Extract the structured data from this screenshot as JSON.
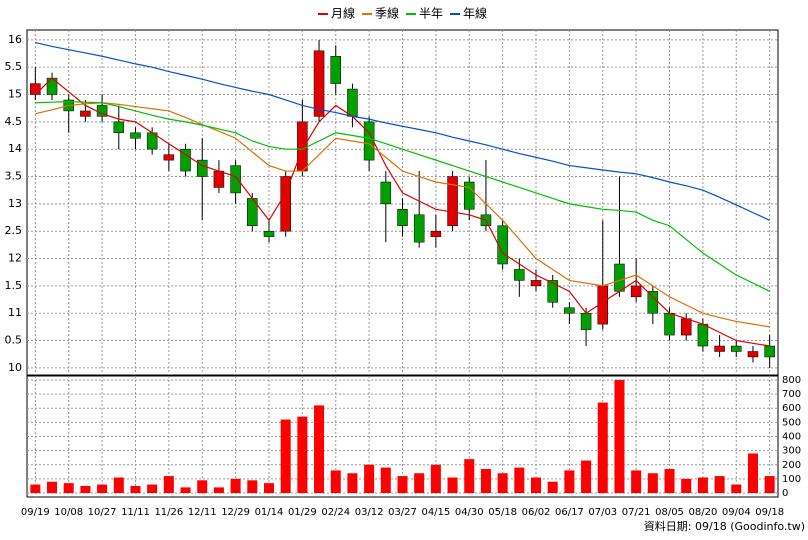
{
  "chart_data": {
    "type": "candlestick",
    "categories": [
      "09/19",
      null,
      "10/08",
      null,
      "10/27",
      null,
      "11/11",
      null,
      "11/26",
      null,
      "12/11",
      null,
      "12/29",
      null,
      "01/14",
      null,
      "01/29",
      null,
      "02/24",
      null,
      "03/12",
      null,
      "03/27",
      null,
      "04/15",
      null,
      "04/30",
      null,
      "05/18",
      null,
      "06/02",
      null,
      "06/17",
      null,
      "07/03",
      null,
      "07/21",
      null,
      "08/05",
      null,
      "08/20",
      null,
      "09/04",
      null,
      "09/18"
    ],
    "open": [
      15.0,
      15.3,
      14.9,
      14.6,
      14.8,
      14.5,
      14.3,
      14.3,
      13.8,
      14.0,
      13.8,
      13.3,
      13.7,
      13.1,
      12.5,
      12.5,
      13.6,
      14.6,
      15.7,
      15.1,
      14.5,
      13.4,
      12.9,
      12.8,
      12.4,
      12.6,
      13.4,
      12.8,
      12.6,
      11.8,
      11.5,
      11.6,
      11.1,
      11.0,
      10.8,
      11.9,
      11.3,
      11.4,
      11.0,
      10.6,
      10.8,
      10.3,
      10.4,
      10.2,
      10.4
    ],
    "high": [
      15.5,
      15.4,
      15.0,
      14.9,
      15.0,
      14.8,
      14.4,
      14.4,
      14.1,
      14.1,
      14.2,
      13.8,
      13.8,
      13.2,
      12.7,
      13.6,
      14.9,
      16.0,
      15.9,
      15.2,
      14.6,
      13.6,
      13.1,
      13.6,
      12.8,
      13.6,
      13.5,
      13.8,
      12.7,
      12.0,
      11.8,
      11.7,
      11.2,
      11.1,
      12.7,
      13.5,
      12.0,
      11.5,
      11.1,
      11.0,
      10.9,
      10.6,
      10.5,
      10.4,
      10.6
    ],
    "low": [
      14.9,
      14.9,
      14.3,
      14.5,
      14.5,
      14.0,
      14.0,
      13.9,
      13.6,
      13.5,
      12.7,
      13.2,
      13.0,
      12.5,
      12.3,
      12.4,
      13.5,
      14.5,
      15.0,
      14.4,
      13.6,
      12.3,
      12.4,
      12.2,
      12.2,
      12.5,
      12.7,
      12.5,
      11.8,
      11.3,
      11.4,
      11.1,
      10.8,
      10.4,
      10.7,
      11.3,
      11.2,
      10.8,
      10.5,
      10.5,
      10.3,
      10.2,
      10.2,
      10.1,
      10.0
    ],
    "close": [
      15.2,
      15.0,
      14.7,
      14.7,
      14.6,
      14.3,
      14.2,
      14.0,
      13.9,
      13.6,
      13.5,
      13.6,
      13.2,
      12.6,
      12.4,
      13.5,
      14.5,
      15.8,
      15.2,
      14.6,
      13.8,
      13.0,
      12.6,
      12.3,
      12.5,
      13.5,
      12.9,
      12.6,
      11.9,
      11.6,
      11.6,
      11.2,
      11.0,
      10.7,
      11.5,
      11.4,
      11.5,
      11.0,
      10.6,
      10.9,
      10.4,
      10.4,
      10.3,
      10.3,
      10.2
    ],
    "up_color": "#e00000",
    "down_color": "#00a000",
    "ylim": [
      9.87,
      16.18
    ],
    "yticks": [
      10,
      {
        "value": 10.5,
        "label": "0.5"
      },
      11,
      {
        "value": 11.5,
        "label": "1.5"
      },
      12,
      {
        "value": 12.5,
        "label": "2.5"
      },
      13,
      {
        "value": 13.5,
        "label": "3.5"
      },
      14,
      {
        "value": 14.5,
        "label": "4.5"
      },
      15,
      {
        "value": 15.5,
        "label": "5.5"
      },
      16
    ],
    "series": [
      {
        "name": "月線",
        "color": "#e00000",
        "values": [
          15.0,
          15.3,
          15.05,
          14.8,
          14.65,
          14.55,
          14.5,
          14.3,
          14.1,
          13.9,
          13.7,
          13.6,
          13.5,
          13.1,
          12.7,
          13.2,
          14.0,
          14.5,
          14.8,
          14.6,
          14.3,
          13.7,
          13.2,
          13.05,
          12.9,
          12.85,
          12.8,
          12.7,
          12.1,
          11.9,
          11.7,
          11.55,
          11.4,
          11.0,
          11.2,
          11.4,
          11.6,
          11.3,
          11.0,
          10.9,
          10.8,
          10.65,
          10.5,
          10.45,
          10.4
        ]
      },
      {
        "name": "季線",
        "color": "#e07000",
        "values": [
          14.65,
          14.72,
          14.8,
          14.83,
          14.85,
          14.82,
          14.78,
          14.74,
          14.7,
          14.58,
          14.45,
          14.33,
          14.2,
          13.95,
          13.7,
          13.6,
          13.6,
          13.9,
          14.2,
          14.15,
          14.1,
          13.85,
          13.6,
          13.5,
          13.4,
          13.35,
          13.3,
          13.0,
          12.7,
          12.35,
          12.0,
          11.8,
          11.6,
          11.55,
          11.5,
          11.6,
          11.7,
          11.5,
          11.3,
          11.15,
          11.0,
          10.92,
          10.85,
          10.8,
          10.75
        ]
      },
      {
        "name": "半年",
        "color": "#00c000",
        "values": [
          14.85,
          14.86,
          14.87,
          14.86,
          14.85,
          14.78,
          14.7,
          14.62,
          14.55,
          14.5,
          14.44,
          14.37,
          14.3,
          14.15,
          14.05,
          14.0,
          14.0,
          14.15,
          14.3,
          14.25,
          14.2,
          14.1,
          14.0,
          13.9,
          13.8,
          13.7,
          13.6,
          13.5,
          13.4,
          13.3,
          13.2,
          13.1,
          13.0,
          12.95,
          12.9,
          12.88,
          12.85,
          12.7,
          12.6,
          12.35,
          12.1,
          11.9,
          11.7,
          11.55,
          11.4
        ]
      },
      {
        "name": "年線",
        "color": "#0050d0",
        "values": [
          15.95,
          15.88,
          15.82,
          15.76,
          15.7,
          15.63,
          15.56,
          15.5,
          15.42,
          15.35,
          15.28,
          15.2,
          15.13,
          15.06,
          15.0,
          14.9,
          14.8,
          14.73,
          14.67,
          14.6,
          14.55,
          14.48,
          14.42,
          14.36,
          14.3,
          14.22,
          14.15,
          14.08,
          14.0,
          13.92,
          13.85,
          13.78,
          13.7,
          13.66,
          13.62,
          13.58,
          13.55,
          13.48,
          13.4,
          13.33,
          13.25,
          13.12,
          12.98,
          12.84,
          12.7
        ]
      }
    ],
    "volume": {
      "color": "#ff0000",
      "values": [
        60,
        80,
        70,
        50,
        60,
        110,
        50,
        60,
        120,
        40,
        90,
        40,
        100,
        90,
        70,
        520,
        540,
        620,
        160,
        140,
        200,
        180,
        120,
        140,
        200,
        110,
        240,
        170,
        140,
        180,
        110,
        80,
        160,
        230,
        640,
        800,
        160,
        140,
        170,
        100,
        110,
        120,
        60,
        280,
        120
      ],
      "y2lim": [
        -28,
        828
      ],
      "y2ticks": [
        0,
        100,
        200,
        300,
        400,
        500,
        600,
        700,
        800
      ]
    },
    "footnote": "資料日期: 09/18 (Goodinfo.tw)",
    "grid": true
  }
}
